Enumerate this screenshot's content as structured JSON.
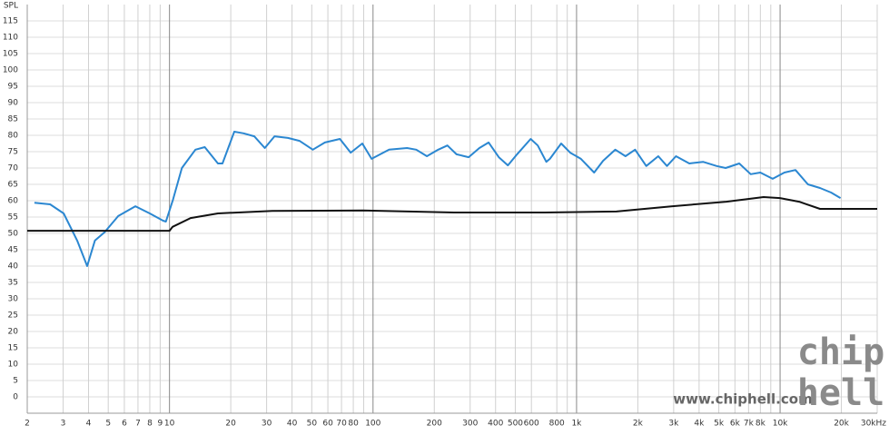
{
  "chart_data": {
    "type": "line",
    "y_label": "SPL",
    "xscale": "log",
    "grid": true,
    "xlim": [
      2,
      30000
    ],
    "ylim": [
      -5,
      120
    ],
    "yticks": [
      0,
      5,
      10,
      15,
      20,
      25,
      30,
      35,
      40,
      45,
      50,
      55,
      60,
      65,
      70,
      75,
      80,
      85,
      90,
      95,
      100,
      105,
      110,
      115
    ],
    "xticks": [
      2,
      3,
      4,
      5,
      6,
      7,
      8,
      9,
      10,
      20,
      30,
      40,
      50,
      60,
      70,
      80,
      100,
      200,
      300,
      400,
      500,
      600,
      800,
      {
        "value": 1000,
        "label": "1k"
      },
      {
        "value": 2000,
        "label": "2k"
      },
      {
        "value": 3000,
        "label": "3k"
      },
      {
        "value": 4000,
        "label": "4k"
      },
      {
        "value": 5000,
        "label": "5k"
      },
      {
        "value": 6000,
        "label": "6k"
      },
      {
        "value": 7000,
        "label": "7k"
      },
      {
        "value": 8000,
        "label": "8k"
      },
      {
        "value": 10000,
        "label": "10k"
      },
      {
        "value": 20000,
        "label": "20k"
      },
      {
        "value": 30000,
        "label": "30kHz"
      }
    ],
    "minor_xticks": [
      90,
      900,
      9000
    ],
    "series": [
      {
        "color": "#2b87d1",
        "x": [
          2.17,
          2.59,
          3.02,
          3.52,
          3.94,
          4.3,
          4.79,
          5.6,
          6.8,
          8.0,
          9.3,
          9.6,
          10.4,
          11.5,
          13.4,
          14.9,
          17.3,
          18.2,
          20.8,
          23.1,
          26.1,
          29.4,
          32.8,
          38.2,
          43.5,
          50.6,
          58,
          68.7,
          77.7,
          88.6,
          98.4,
          120,
          147,
          163,
          184,
          209,
          232,
          257,
          295,
          333,
          370,
          415,
          460,
          510,
          595,
          645,
          710,
          740,
          840,
          930,
          1050,
          1220,
          1350,
          1550,
          1740,
          1940,
          2200,
          2520,
          2780,
          3080,
          3580,
          4180,
          4880,
          5400,
          6300,
          7170,
          8000,
          9200,
          10500,
          11900,
          13700,
          15700,
          17800,
          19800
        ],
        "values": [
          59.4,
          58.9,
          56.1,
          47.8,
          40,
          47.8,
          50.3,
          55.3,
          58.3,
          56.1,
          53.9,
          53.6,
          60.3,
          70,
          75.6,
          76.4,
          71.4,
          71.4,
          81.1,
          80.6,
          79.7,
          76.1,
          79.7,
          79.2,
          78.3,
          75.6,
          77.8,
          78.9,
          74.7,
          77.5,
          72.8,
          75.6,
          76.1,
          75.6,
          73.6,
          75.6,
          76.9,
          74.2,
          73.3,
          76.1,
          77.8,
          73.3,
          70.8,
          74.2,
          78.9,
          76.9,
          71.9,
          72.8,
          77.5,
          74.7,
          72.8,
          68.6,
          72.2,
          75.6,
          73.6,
          75.6,
          70.6,
          73.6,
          70.6,
          73.6,
          71.4,
          71.9,
          70.6,
          70,
          71.4,
          68.1,
          68.6,
          66.7,
          68.6,
          69.4,
          65,
          63.9,
          62.5,
          60.8
        ]
      },
      {
        "color": "#111111",
        "x": [
          2,
          10,
          10.35,
          12.7,
          17.3,
          32,
          89,
          250,
          700,
          1570,
          2960,
          5440,
          8300,
          9990,
          12400,
          15700,
          30000
        ],
        "values": [
          50.8,
          50.8,
          52,
          54.7,
          56.1,
          56.9,
          57,
          56.4,
          56.4,
          56.7,
          58.3,
          59.7,
          61.1,
          60.8,
          59.7,
          57.5,
          57.5
        ]
      }
    ],
    "watermark": "www.chiphell.com",
    "logo_top": "chip",
    "logo_bottom": "hell"
  }
}
